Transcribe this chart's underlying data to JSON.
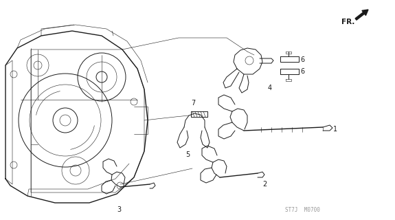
{
  "bg_color": "#ffffff",
  "line_color": "#1a1a1a",
  "fig_width": 5.75,
  "fig_height": 3.2,
  "dpi": 100,
  "watermark": "ST7J  M0700",
  "fr_label": "FR."
}
